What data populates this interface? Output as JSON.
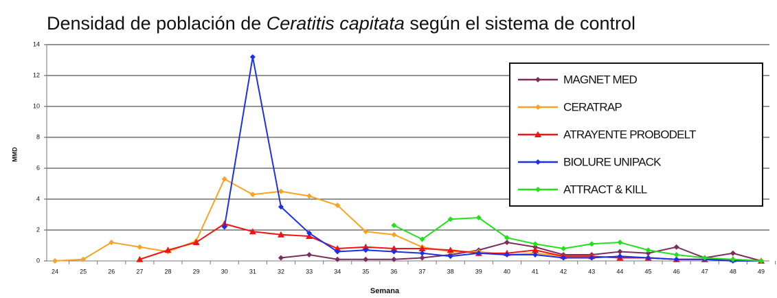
{
  "chart_data": {
    "type": "line",
    "title": [
      "Densidad de población de ",
      "Ceratitis capitata",
      " según el sistema de control"
    ],
    "xlabel": "Semana",
    "ylabel": "MMD",
    "categories": [
      "24",
      "25",
      "26",
      "27",
      "28",
      "29",
      "30",
      "31",
      "32",
      "33",
      "34",
      "35",
      "36",
      "37",
      "38",
      "39",
      "40",
      "41",
      "42",
      "43",
      "44",
      "45",
      "46",
      "47",
      "48",
      "49"
    ],
    "ylim": [
      0,
      14
    ],
    "yticks": [
      0,
      2,
      4,
      6,
      8,
      10,
      12,
      14
    ],
    "grid": true,
    "legend": "upper right",
    "series": [
      {
        "name": "MAGNET MED",
        "color": "#7b2d5b",
        "marker": "diamond",
        "values": [
          null,
          null,
          null,
          null,
          null,
          null,
          null,
          null,
          0.2,
          0.4,
          0.1,
          0.1,
          0.1,
          0.2,
          0.4,
          0.7,
          1.2,
          0.9,
          0.4,
          0.4,
          0.6,
          0.5,
          0.9,
          0.2,
          0.5,
          0.0
        ]
      },
      {
        "name": "CERATRAP",
        "color": "#f7a324",
        "marker": "diamond",
        "values": [
          0.0,
          0.1,
          1.2,
          0.9,
          0.6,
          1.3,
          5.3,
          4.3,
          4.5,
          4.2,
          3.6,
          1.9,
          1.7,
          0.9,
          0.6,
          0.6,
          0.4,
          0.5,
          0.3,
          0.3,
          0.2,
          0.2,
          0.1,
          0.1,
          0.1,
          0.0
        ]
      },
      {
        "name": "ATRAYENTE PROBODELT",
        "color": "#f21414",
        "marker": "triangle",
        "values": [
          null,
          null,
          null,
          0.1,
          0.7,
          1.2,
          2.4,
          1.9,
          1.7,
          1.6,
          0.8,
          0.9,
          0.8,
          0.8,
          0.7,
          0.5,
          0.5,
          0.7,
          0.3,
          0.3,
          0.2,
          0.2,
          0.1,
          0.1,
          0.1,
          0.0
        ]
      },
      {
        "name": "BIOLURE UNIPACK",
        "color": "#1c2fe8",
        "marker": "diamond",
        "values": [
          null,
          null,
          null,
          null,
          null,
          null,
          2.2,
          13.2,
          3.5,
          1.8,
          0.6,
          0.7,
          0.6,
          0.5,
          0.3,
          0.5,
          0.4,
          0.4,
          0.2,
          0.2,
          0.3,
          0.2,
          0.1,
          0.1,
          0.0,
          0.0
        ]
      },
      {
        "name": "ATTRACT & KILL",
        "color": "#22e01c",
        "marker": "diamond",
        "values": [
          null,
          null,
          null,
          null,
          null,
          null,
          null,
          null,
          null,
          null,
          null,
          null,
          2.3,
          1.4,
          2.7,
          2.8,
          1.5,
          1.1,
          0.8,
          1.1,
          1.2,
          0.7,
          0.4,
          0.2,
          0.1,
          0.0
        ]
      }
    ]
  }
}
